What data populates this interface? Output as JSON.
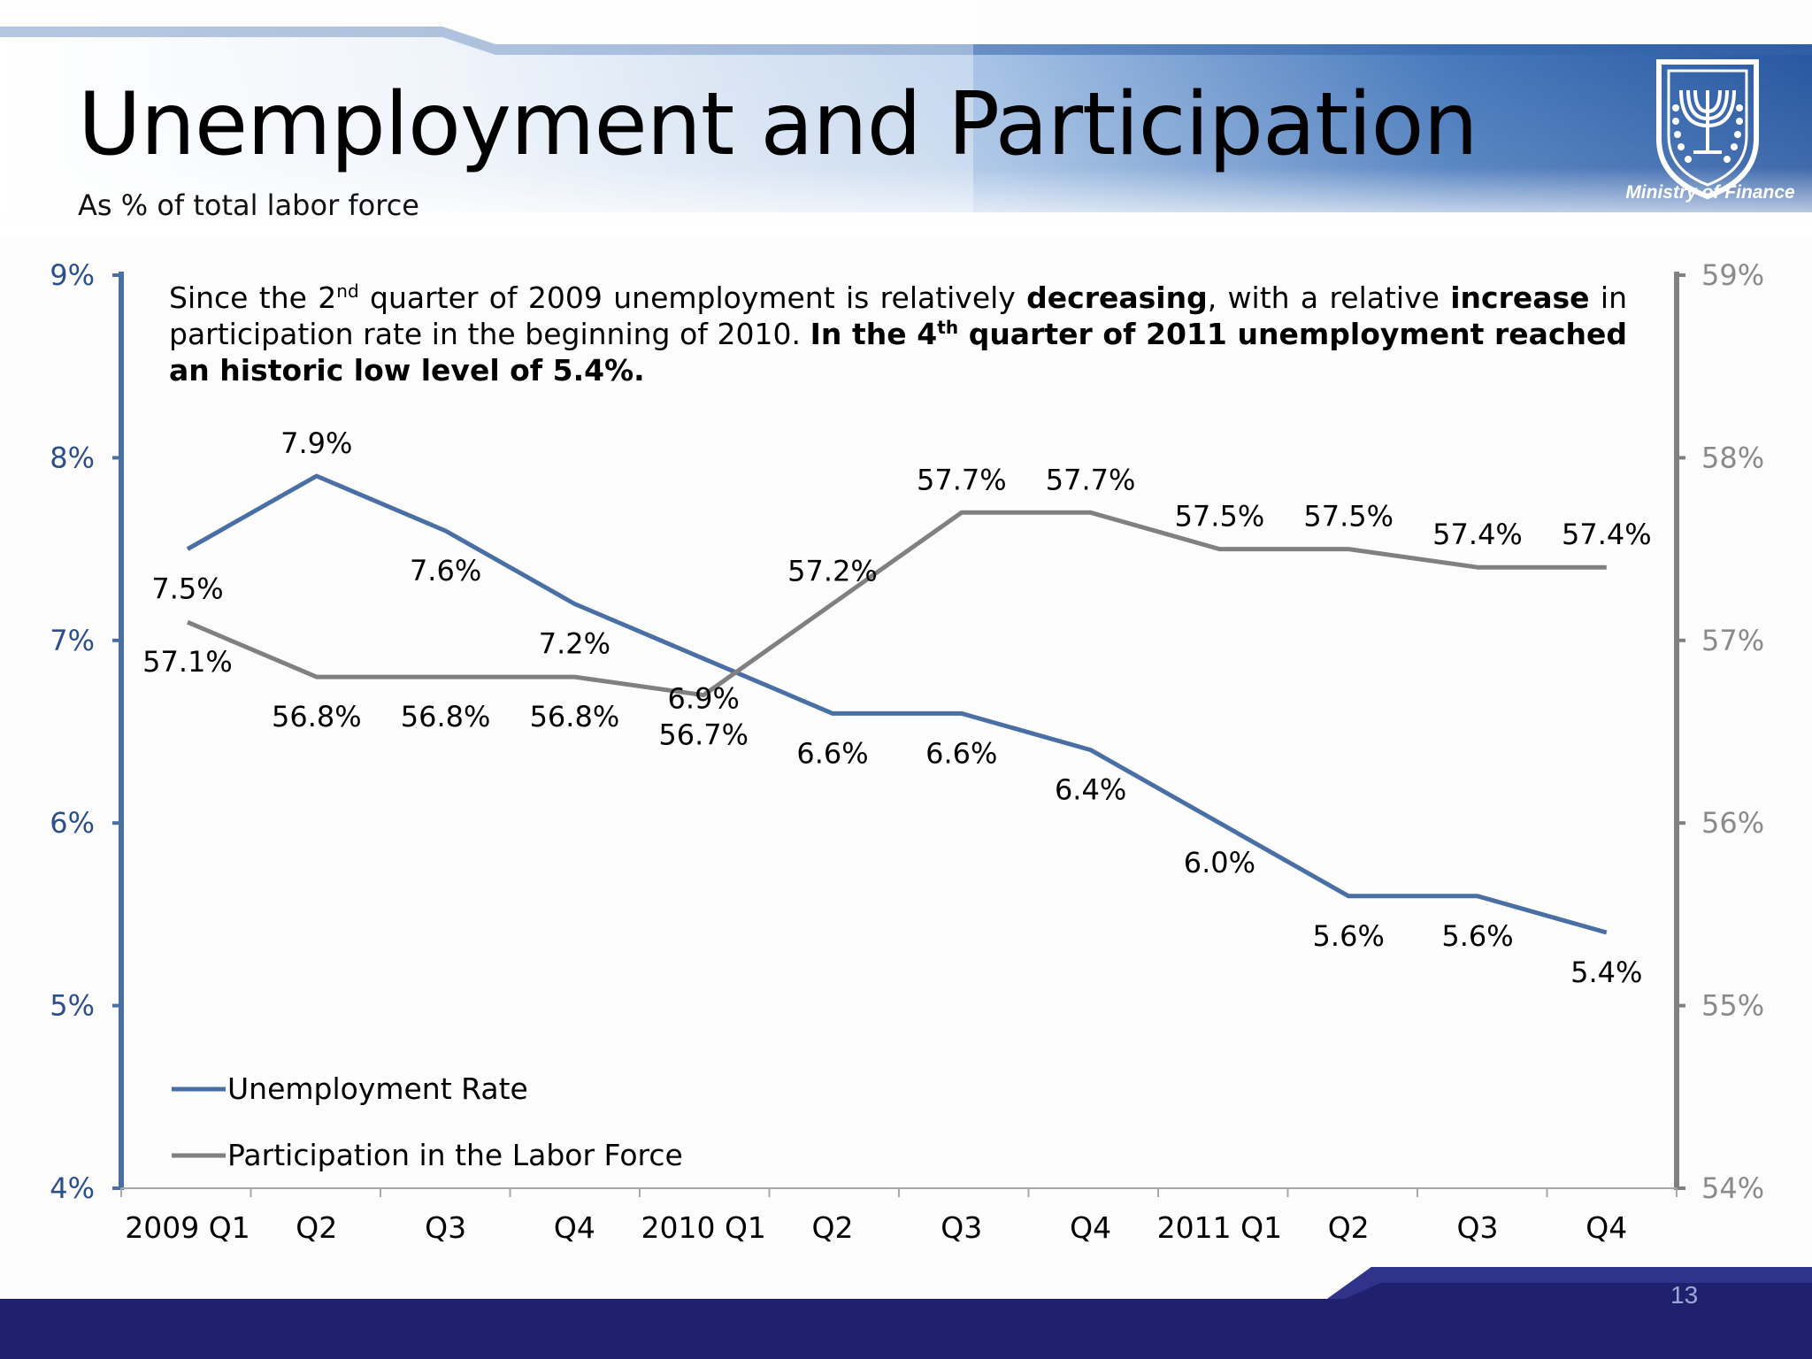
{
  "slide": {
    "title": "Unemployment and Participation",
    "subtitle": "As % of total labor force",
    "page_number": "13",
    "logo_caption": "Ministry of Finance",
    "colors": {
      "header_blue": "#1d4f9c",
      "footer_navy": "#1f216e",
      "unemployment_series": "#4a6fa5",
      "participation_series": "#808080",
      "left_axis": "#4a6fa5",
      "right_axis": "#808080"
    }
  },
  "note": {
    "part1": "Since the 2",
    "sup1": "nd",
    "part2": " quarter of 2009 unemployment is relatively ",
    "bold1": "decreasing",
    "part3": ", with a relative ",
    "bold2": "increase",
    "part4": " in participation rate in the beginning of 2010. ",
    "bold3a": "In the 4",
    "sup2": "th",
    "bold3b": " quarter of 2011 unemployment reached an historic  low level of 5.4%."
  },
  "chart_data": {
    "type": "line",
    "categories": [
      "2009 Q1",
      "Q2",
      "Q3",
      "Q4",
      "2010 Q1",
      "Q2",
      "Q3",
      "Q4",
      "2011 Q1",
      "Q2",
      "Q3",
      "Q4"
    ],
    "left_axis": {
      "min": 4,
      "max": 9,
      "ticks": [
        "4%",
        "5%",
        "6%",
        "7%",
        "8%",
        "9%"
      ]
    },
    "right_axis": {
      "min": 54,
      "max": 59,
      "ticks": [
        "54%",
        "55%",
        "56%",
        "57%",
        "58%",
        "59%"
      ]
    },
    "series": [
      {
        "name": "Unemployment Rate",
        "axis": "left",
        "color": "#4a6fa5",
        "values": [
          7.5,
          7.9,
          7.6,
          7.2,
          6.9,
          6.6,
          6.6,
          6.4,
          6.0,
          5.6,
          5.6,
          5.4
        ],
        "labels": [
          "7.5%",
          "7.9%",
          "7.6%",
          "7.2%",
          "6.9%",
          "6.6%",
          "6.6%",
          "6.4%",
          "6.0%",
          "5.6%",
          "5.6%",
          "5.4%"
        ]
      },
      {
        "name": "Participation in the Labor Force",
        "axis": "right",
        "color": "#808080",
        "values": [
          57.1,
          56.8,
          56.8,
          56.8,
          56.7,
          57.2,
          57.7,
          57.7,
          57.5,
          57.5,
          57.4,
          57.4
        ],
        "labels": [
          "57.1%",
          "56.8%",
          "56.8%",
          "56.8%",
          "56.7%",
          "57.2%",
          "57.7%",
          "57.7%",
          "57.5%",
          "57.5%",
          "57.4%",
          "57.4%"
        ]
      }
    ],
    "legend_position": "bottom-left",
    "grid": false
  }
}
